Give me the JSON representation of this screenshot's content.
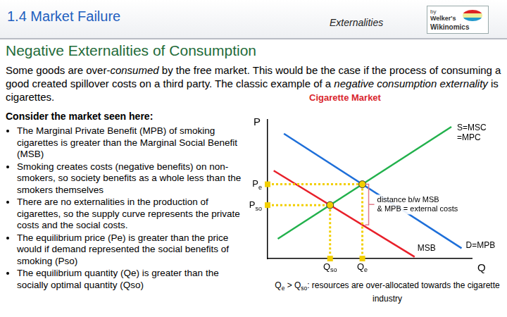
{
  "header": {
    "title": "1.4 Market Failure",
    "section": "Externalities",
    "logo": [
      "by",
      "Welker's",
      "Wikinomics"
    ]
  },
  "heading": "Negative Externalities of Consumption",
  "intro": [
    {
      "text": "Some goods are over-"
    },
    {
      "text": "consumed",
      "italic": true
    },
    {
      "text": " by the free market. This would  be the case if the process of consuming a good created spillover costs on a third party. The classic example of a "
    },
    {
      "text": "negative consumption externality",
      "italic": true
    },
    {
      "text": " is cigarettes."
    }
  ],
  "lead": "Consider the market seen here:",
  "bullets": [
    "The Marginal Private Benefit (MPB) of smoking cigarettes is greater than the Marginal Social Benefit (MSB)",
    "Smoking creates costs (negative benefits) on non-smokers, so society benefits as a whole less than the smokers themselves",
    "There are no externalities in the production of cigarettes, so the supply curve represents the private costs and the social costs.",
    "The equilibrium price (Pe) is greater than the price would if demand represented the social benefits of smoking (Pso)",
    "The equilibrium quantity (Qe) is greater than the socially optimal quantity (Qso)"
  ],
  "chart_data": {
    "type": "line",
    "title": "Cigarette Market",
    "x_label": "Q",
    "y_label": "P",
    "xlim": [
      0,
      10
    ],
    "ylim": [
      0,
      10
    ],
    "grid": false,
    "tick_labels": false,
    "series": [
      {
        "name": "S=MSC=MPC",
        "color": "#22b14c",
        "x": [
          0.5,
          9.0
        ],
        "values": [
          1.42,
          9.49
        ]
      },
      {
        "name": "D=MPB",
        "color": "#1e6fd9",
        "x": [
          0.8,
          9.5
        ],
        "values": [
          9.0,
          0.74
        ]
      },
      {
        "name": "MSB",
        "color": "#e8202a",
        "x": [
          0.3,
          7.2
        ],
        "values": [
          6.33,
          0.12
        ]
      }
    ],
    "equilibria": [
      {
        "x": 4.64,
        "y": 5.35,
        "x_label": {
          "base": "Q",
          "sub": "e"
        },
        "y_label": {
          "base": "P",
          "sub": "e"
        }
      },
      {
        "x": 3.06,
        "y": 3.85,
        "x_label": {
          "base": "Q",
          "sub": "so"
        },
        "y_label": {
          "base": "P",
          "sub": "so"
        }
      }
    ],
    "external_cost": {
      "x": 4.64,
      "from": 5.35,
      "to": 2.43,
      "text": [
        "distance b/w MSB",
        "& MPB = external costs"
      ]
    },
    "caption": [
      {
        "text": "Q"
      },
      {
        "text": "e",
        "sub": true
      },
      {
        "text": " > Q"
      },
      {
        "text": "so",
        "sub": true
      },
      {
        "text": ": resources are over-allocated towards the cigarette industry"
      }
    ]
  }
}
